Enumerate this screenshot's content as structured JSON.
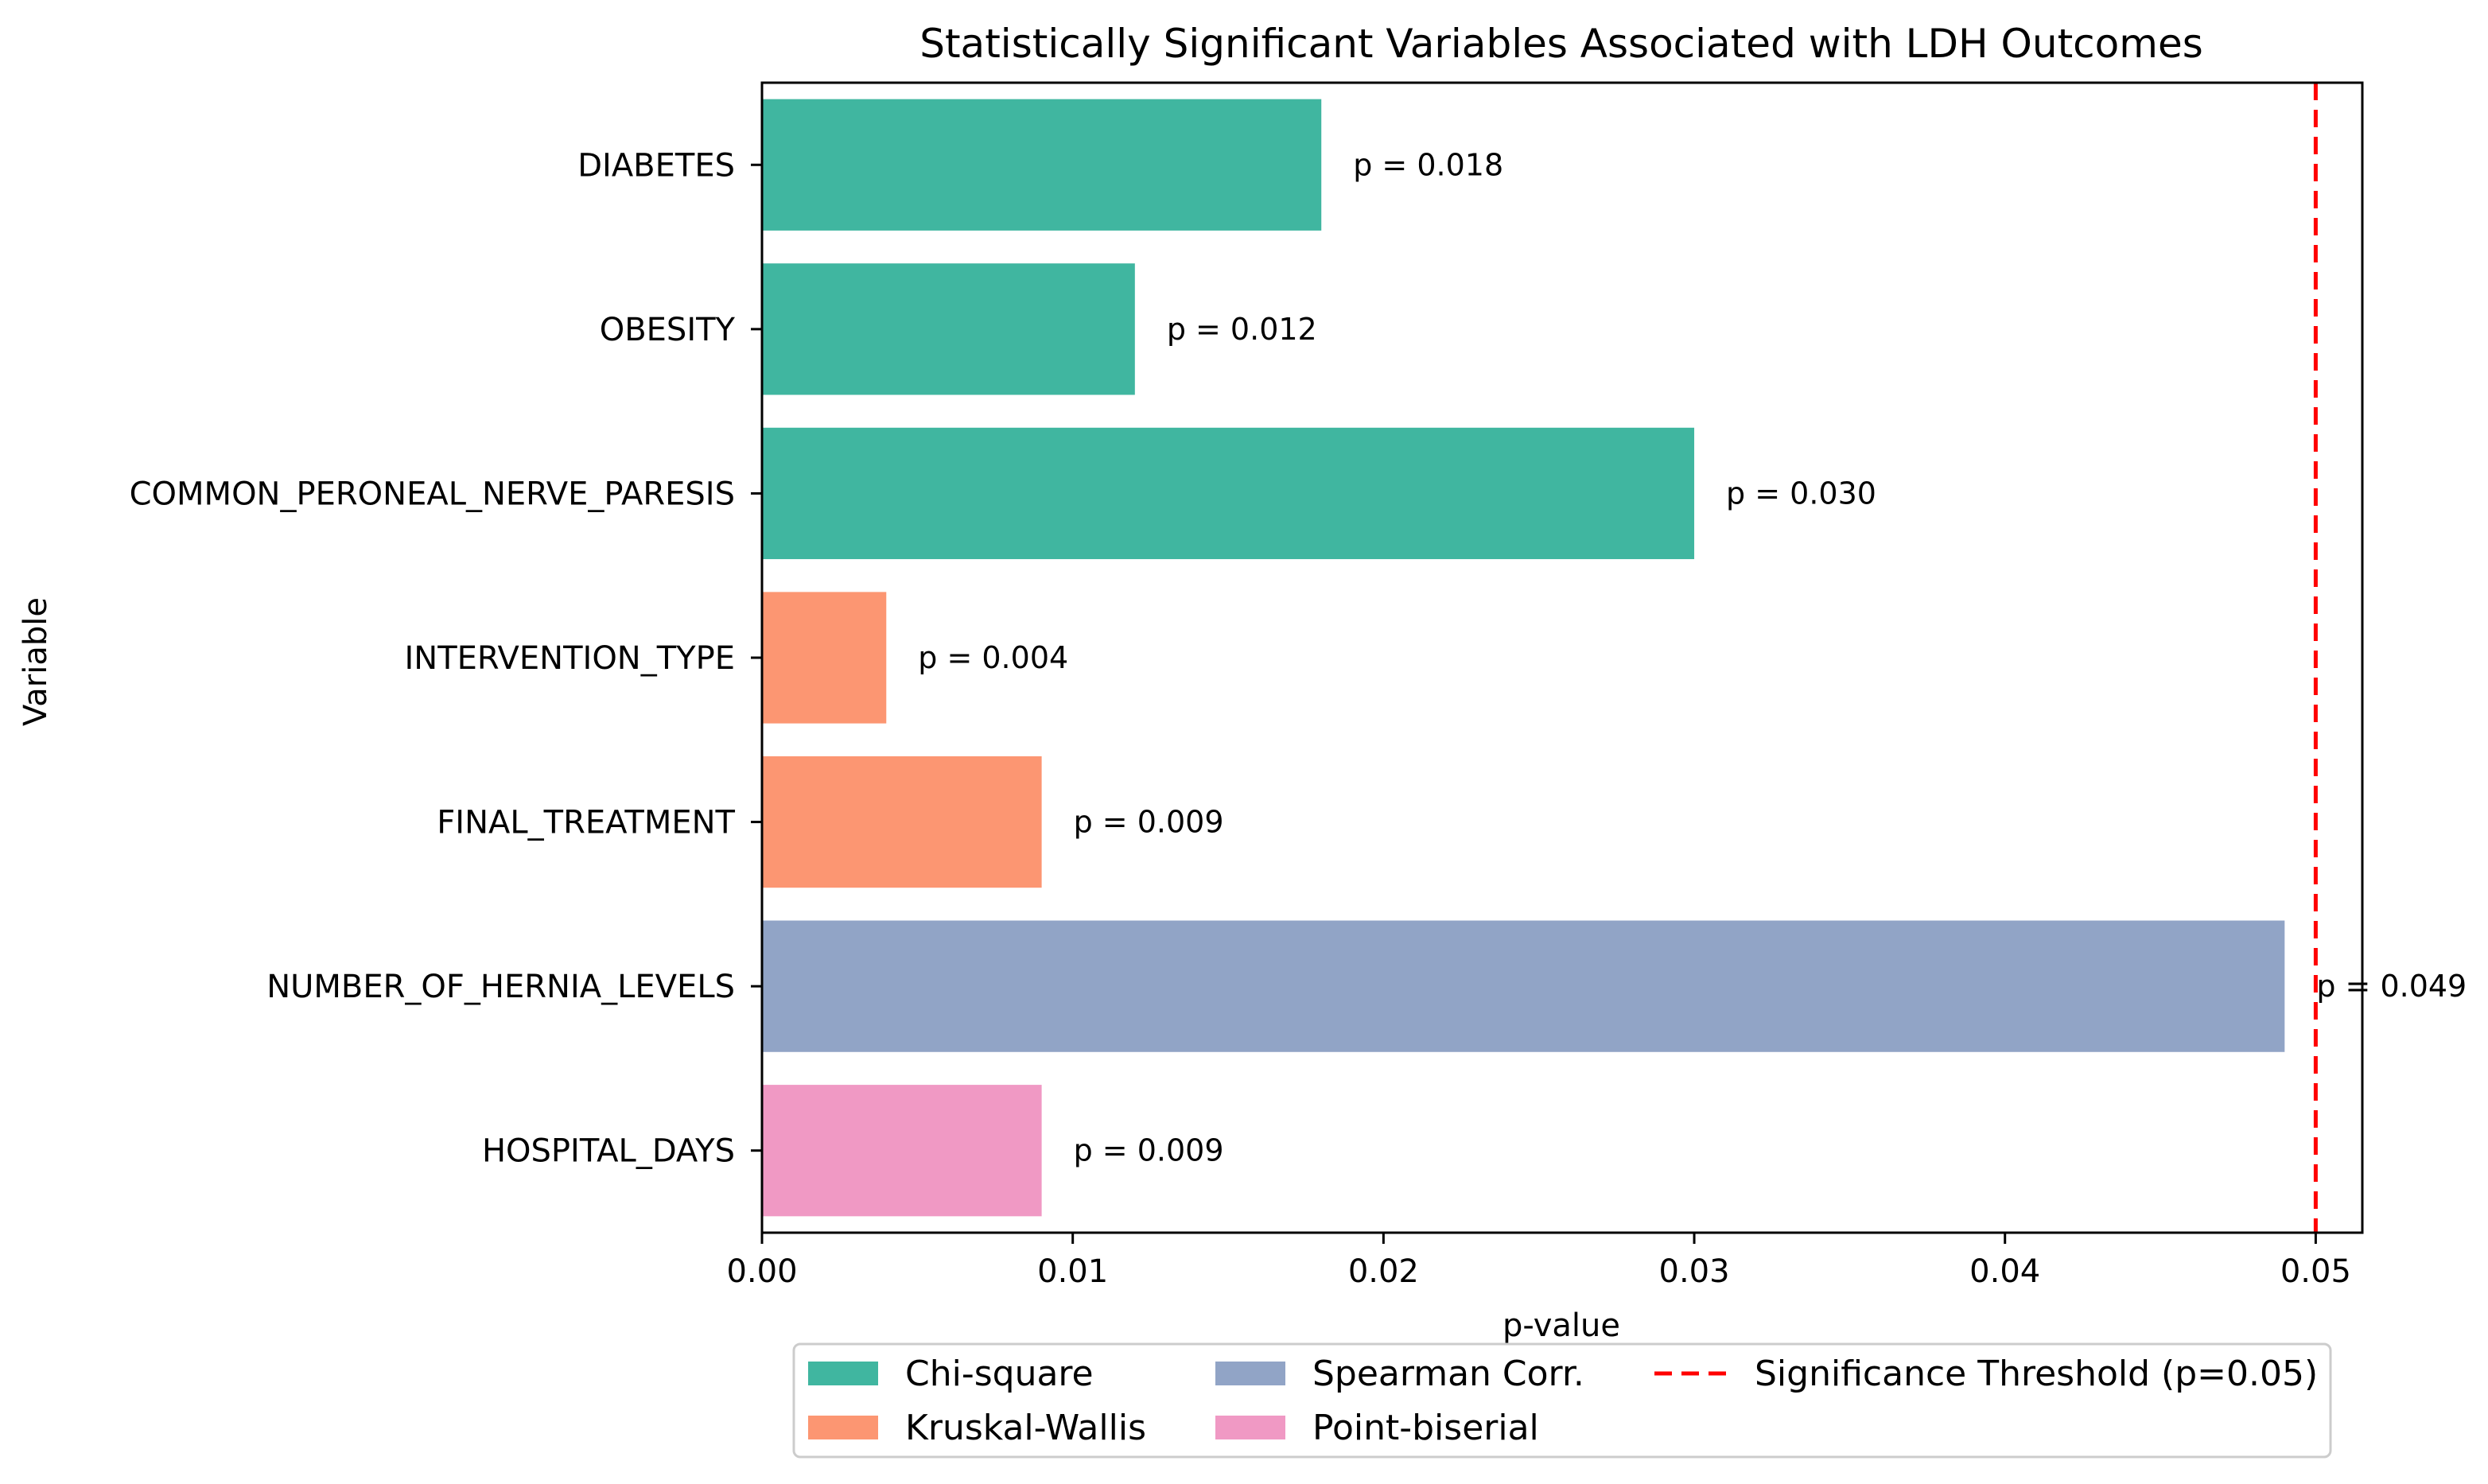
{
  "chart_data": {
    "type": "bar",
    "orientation": "horizontal",
    "title": "Statistically Significant Variables Associated with LDH Outcomes",
    "xlabel": "p-value",
    "ylabel": "Variable",
    "xlim": [
      0,
      0.0515
    ],
    "xticks": [
      0.0,
      0.01,
      0.02,
      0.03,
      0.04,
      0.05
    ],
    "xtick_labels": [
      "0.00",
      "0.01",
      "0.02",
      "0.03",
      "0.04",
      "0.05"
    ],
    "bars": [
      {
        "category": "DIABETES",
        "value": 0.018,
        "label": "p = 0.018",
        "test": "Chi-square"
      },
      {
        "category": "OBESITY",
        "value": 0.012,
        "label": "p = 0.012",
        "test": "Chi-square"
      },
      {
        "category": "COMMON_PERONEAL_NERVE_PARESIS",
        "value": 0.03,
        "label": "p = 0.030",
        "test": "Chi-square"
      },
      {
        "category": "INTERVENTION_TYPE",
        "value": 0.004,
        "label": "p = 0.004",
        "test": "Kruskal-Wallis"
      },
      {
        "category": "FINAL_TREATMENT",
        "value": 0.009,
        "label": "p = 0.009",
        "test": "Kruskal-Wallis"
      },
      {
        "category": "NUMBER_OF_HERNIA_LEVELS",
        "value": 0.049,
        "label": "p = 0.049",
        "test": "Spearman Corr."
      },
      {
        "category": "HOSPITAL_DAYS",
        "value": 0.009,
        "label": "p = 0.009",
        "test": "Point-biserial"
      }
    ],
    "threshold": {
      "value": 0.05,
      "label": "Significance Threshold (p=0.05)",
      "color": "#ff0000"
    },
    "legend": {
      "position": "bottom-center",
      "entries": [
        {
          "name": "Chi-square",
          "color": "#40b6a0"
        },
        {
          "name": "Kruskal-Wallis",
          "color": "#fc9672"
        },
        {
          "name": "Spearman Corr.",
          "color": "#91a4c6"
        },
        {
          "name": "Point-biserial",
          "color": "#f099c4"
        }
      ]
    }
  }
}
